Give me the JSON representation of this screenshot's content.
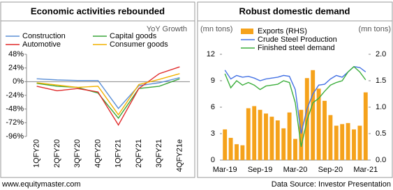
{
  "chart_data": [
    {
      "type": "line",
      "title": "Economic activities rebounded",
      "subtitle": "YoY Growth",
      "categories": [
        "1QFY20",
        "2QFY20",
        "3QFY20",
        "4QFY20",
        "1QFY21",
        "2QFY21",
        "3QFY21",
        "4QFY21e"
      ],
      "ylim": [
        -96,
        48
      ],
      "yticks": [
        {
          "value": 48,
          "label": "48%"
        },
        {
          "value": 24,
          "label": "24%"
        },
        {
          "value": 0,
          "label": "0%"
        },
        {
          "value": -24,
          "label": "-24%"
        },
        {
          "value": -48,
          "label": "-48%"
        },
        {
          "value": -72,
          "label": "-72%"
        },
        {
          "value": -96,
          "label": "-96%"
        }
      ],
      "series": [
        {
          "name": "Construction",
          "color": "#5b8fd6",
          "values": [
            5,
            3,
            2,
            2,
            -47,
            -7,
            -2,
            7
          ]
        },
        {
          "name": "Capital goods",
          "color": "#3aa63a",
          "values": [
            -3,
            -8,
            -10,
            -20,
            -64,
            -12,
            -8,
            5
          ]
        },
        {
          "name": "Automotive",
          "color": "#e02b2b",
          "values": [
            -8,
            -16,
            -12,
            -18,
            -76,
            -12,
            14,
            26
          ]
        },
        {
          "name": "Consumer goods",
          "color": "#f2b200",
          "values": [
            -2,
            -6,
            -10,
            -8,
            -58,
            -5,
            4,
            14
          ]
        }
      ]
    },
    {
      "type": "combo",
      "title": "Robust domestic demand",
      "y_label": "(mn tons)",
      "y2_label": "(mn tons)",
      "categories": [
        "Mar-19",
        null,
        null,
        null,
        null,
        null,
        "Sep-19",
        null,
        null,
        null,
        null,
        null,
        "Mar-20",
        null,
        null,
        null,
        null,
        null,
        "Sep-20",
        null,
        null,
        null,
        null,
        null,
        "Mar-21"
      ],
      "ylim": [
        0,
        12
      ],
      "yticks": [
        0,
        3,
        6,
        9,
        12
      ],
      "y2lim": [
        0,
        2
      ],
      "y2ticks": [
        {
          "value": 0,
          "label": "0.0"
        },
        0.5,
        {
          "value": 1,
          "label": "1.0"
        },
        1.5,
        {
          "value": 2,
          "label": "2.0"
        }
      ],
      "series": [
        {
          "name": "Exports (RHS)",
          "color": "#f5a21b",
          "mark": "bar",
          "axis": "y2",
          "values": [
            0.58,
            0.42,
            0.3,
            0.28,
            0.98,
            1.02,
            0.95,
            0.88,
            0.82,
            0.75,
            0.6,
            0.9,
            0.4,
            0.95,
            1.55,
            1.7,
            1.35,
            1.12,
            0.85,
            0.65,
            0.68,
            0.7,
            0.58,
            0.65,
            1.28
          ]
        },
        {
          "name": "Crude Steel Production",
          "color": "#4472e4",
          "mark": "line",
          "values": [
            10.2,
            9.2,
            9.6,
            9.4,
            9.5,
            9.3,
            9.0,
            9.2,
            9.3,
            9.4,
            9.6,
            9.5,
            8.0,
            3.0,
            5.8,
            7.5,
            8.5,
            8.6,
            9.2,
            9.6,
            9.4,
            10.0,
            10.6,
            10.5,
            10.0
          ]
        },
        {
          "name": "Finished steel demand",
          "color": "#3cae3c",
          "mark": "line",
          "values": [
            9.8,
            8.2,
            9.0,
            8.5,
            8.8,
            8.5,
            8.0,
            8.4,
            8.5,
            8.6,
            9.0,
            8.8,
            6.5,
            1.5,
            4.5,
            6.5,
            7.0,
            7.8,
            8.5,
            8.8,
            9.0,
            10.0,
            10.6,
            10.0,
            9.1
          ]
        }
      ]
    }
  ],
  "footer": {
    "left": "www.equitymaster.com",
    "right": "Data Source: Investor Presentation"
  }
}
